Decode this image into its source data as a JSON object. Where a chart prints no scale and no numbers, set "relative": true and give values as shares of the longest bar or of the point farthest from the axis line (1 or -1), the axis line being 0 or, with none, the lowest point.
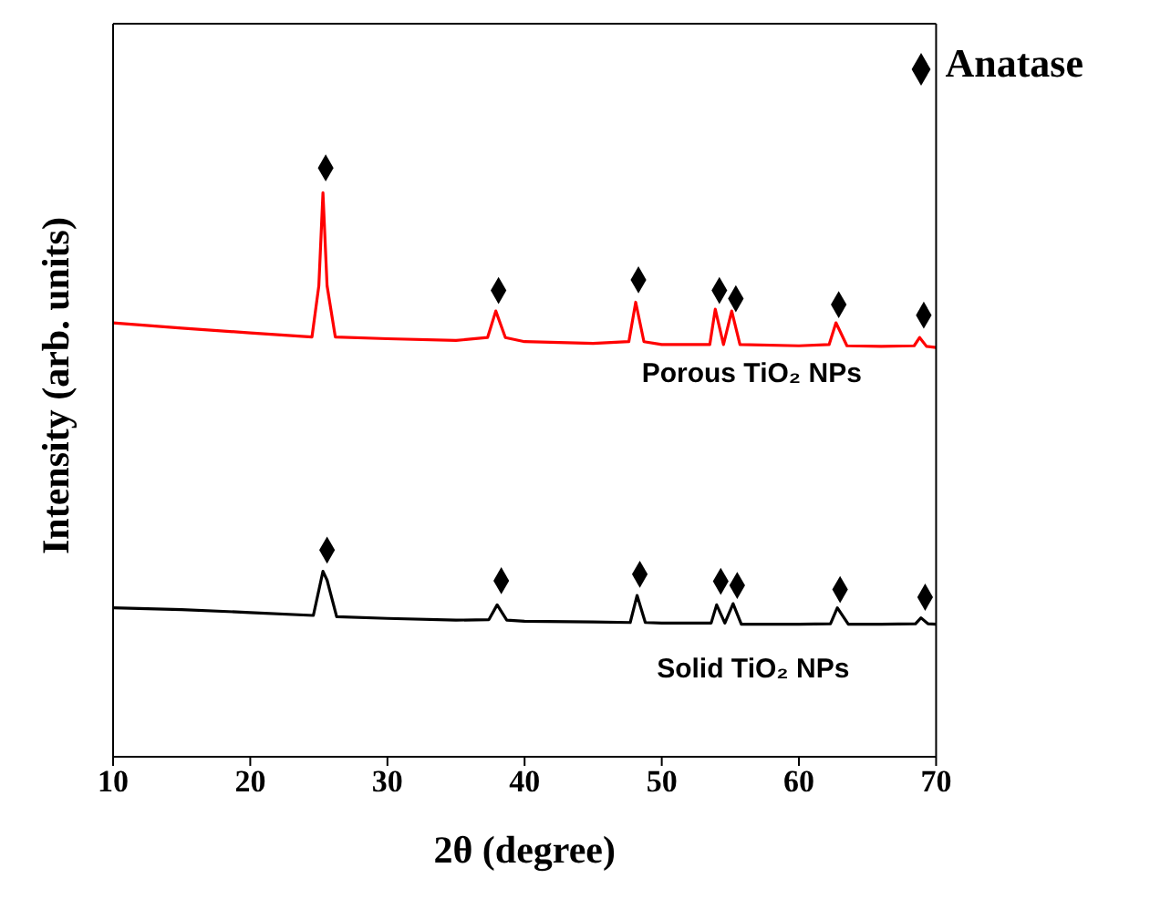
{
  "chart_data": {
    "type": "line",
    "relative": true,
    "xlabel": "2θ (degree)",
    "ylabel": "Intensity (arb. units)",
    "xlim": [
      10,
      70
    ],
    "xticks": [
      10,
      20,
      30,
      40,
      50,
      60,
      70
    ],
    "legend": "top right",
    "grid": false,
    "marker": "none",
    "series": [
      {
        "name": "Porous TiO₂ NPs",
        "color": "#ff0000",
        "x": [
          10,
          15,
          20,
          24.5,
          25.0,
          25.3,
          25.6,
          26.2,
          30,
          35,
          37.3,
          37.9,
          38.6,
          40,
          45,
          47.6,
          48.1,
          48.7,
          50,
          53.5,
          53.9,
          54.5,
          55.1,
          55.7,
          60,
          62.2,
          62.7,
          63.5,
          66,
          68.4,
          68.8,
          69.3,
          70
        ],
        "values": [
          0.737,
          0.728,
          0.72,
          0.713,
          0.8,
          0.958,
          0.8,
          0.713,
          0.71,
          0.707,
          0.712,
          0.757,
          0.712,
          0.705,
          0.702,
          0.705,
          0.772,
          0.705,
          0.7,
          0.7,
          0.76,
          0.7,
          0.757,
          0.7,
          0.698,
          0.7,
          0.737,
          0.698,
          0.697,
          0.698,
          0.712,
          0.697,
          0.695
        ]
      },
      {
        "name": "Solid TiO₂ NPs",
        "color": "#000000",
        "x": [
          10,
          15,
          20,
          24.6,
          25.3,
          25.6,
          26.3,
          30,
          35,
          37.4,
          38.0,
          38.7,
          40,
          45,
          47.7,
          48.2,
          48.8,
          50,
          53.6,
          54.0,
          54.6,
          55.2,
          55.8,
          60,
          62.3,
          62.8,
          63.6,
          66,
          68.5,
          68.9,
          69.4,
          70
        ],
        "values": [
          0.253,
          0.25,
          0.245,
          0.24,
          0.315,
          0.3,
          0.238,
          0.235,
          0.232,
          0.233,
          0.258,
          0.232,
          0.23,
          0.229,
          0.228,
          0.274,
          0.228,
          0.227,
          0.227,
          0.258,
          0.227,
          0.26,
          0.225,
          0.225,
          0.226,
          0.253,
          0.225,
          0.225,
          0.226,
          0.236,
          0.226,
          0.225
        ]
      },
      {
        "name": "Anatase",
        "type": "scatter",
        "color": "#000000",
        "marker": "diamond",
        "x": [
          25.5,
          38.1,
          48.3,
          54.2,
          55.4,
          62.9,
          69.1,
          25.6,
          38.3,
          48.4,
          54.3,
          55.5,
          63.0,
          69.2
        ],
        "values": [
          1,
          0.792,
          0.81,
          0.792,
          0.778,
          0.768,
          0.75,
          0.351,
          0.299,
          0.31,
          0.298,
          0.291,
          0.284,
          0.271
        ]
      }
    ]
  }
}
